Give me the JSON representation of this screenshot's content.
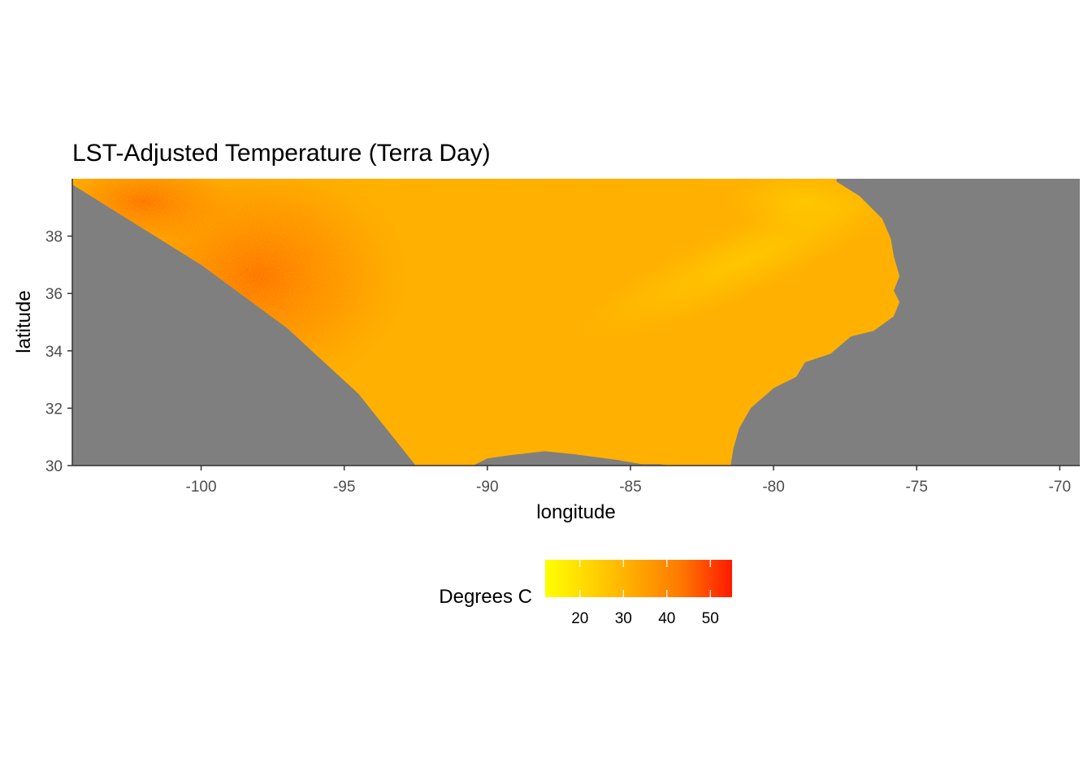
{
  "title": "LST-Adjusted Temperature (Terra Day)",
  "colors": {
    "background": "#ffffff",
    "no_data": "#7f7f7f",
    "scale_low": "#ffff00",
    "scale_mid": "#ffb400",
    "scale_high": "#ff1a00",
    "dominant": "#ffb000"
  },
  "chart_data": {
    "type": "heatmap",
    "title": "LST-Adjusted Temperature (Terra Day)",
    "xlabel": "longitude",
    "ylabel": "latitude",
    "x_ticks": [
      -100,
      -95,
      -90,
      -85,
      -80,
      -75,
      -70
    ],
    "y_ticks": [
      30,
      32,
      34,
      36,
      38
    ],
    "xlim": [
      -104.5,
      -69.3
    ],
    "ylim": [
      30,
      40
    ],
    "grid": false,
    "legend": {
      "title": "Degrees C",
      "position": "bottom",
      "ticks": [
        20,
        30,
        40,
        50
      ],
      "range": [
        12,
        55
      ]
    },
    "swath_edge": [
      [
        -104.5,
        39.8
      ],
      [
        -100,
        37.0
      ],
      [
        -97,
        34.8
      ],
      [
        -94.5,
        32.5
      ],
      [
        -92.5,
        30.0
      ]
    ],
    "coastline": [
      [
        -92.5,
        30.0
      ],
      [
        -92.0,
        29.9
      ],
      [
        -90.5,
        30.0
      ],
      [
        -90.0,
        30.25
      ],
      [
        -89.3,
        30.35
      ],
      [
        -88.0,
        30.5
      ],
      [
        -87.0,
        30.4
      ],
      [
        -85.5,
        30.2
      ],
      [
        -84.6,
        30.05
      ],
      [
        -84.0,
        30.05
      ],
      [
        -83.2,
        29.95
      ],
      [
        -81.5,
        30.0
      ],
      [
        -81.4,
        30.6
      ],
      [
        -81.2,
        31.3
      ],
      [
        -80.8,
        32.0
      ],
      [
        -80.0,
        32.7
      ],
      [
        -79.2,
        33.1
      ],
      [
        -78.9,
        33.6
      ],
      [
        -78.0,
        33.9
      ],
      [
        -77.3,
        34.5
      ],
      [
        -76.5,
        34.7
      ],
      [
        -75.8,
        35.2
      ],
      [
        -75.6,
        35.7
      ],
      [
        -75.8,
        36.1
      ],
      [
        -75.6,
        36.6
      ],
      [
        -75.8,
        37.3
      ],
      [
        -75.9,
        37.9
      ],
      [
        -76.2,
        38.6
      ],
      [
        -76.8,
        39.2
      ],
      [
        -77.0,
        39.4
      ],
      [
        -77.8,
        39.9
      ]
    ],
    "description_values": {
      "dominant_temperature_c": 32,
      "hotspot_region": "around -98, 36 (~40-45 C)"
    }
  }
}
